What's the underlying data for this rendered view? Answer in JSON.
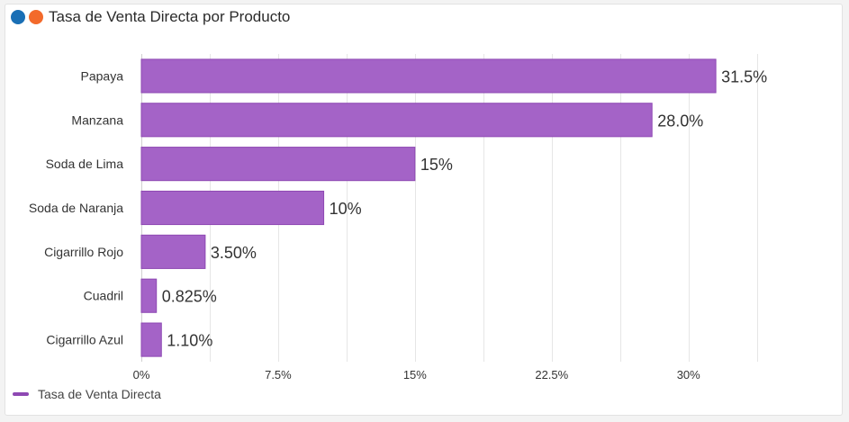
{
  "header": {
    "title": "Tasa de Venta Directa por Producto",
    "dot1_color": "#1a6fb5",
    "dot2_color": "#f36a2b"
  },
  "chart_data": {
    "type": "bar",
    "orientation": "horizontal",
    "title": "Tasa de Venta Directa por Producto",
    "categories": [
      "Papaya",
      "Manzana",
      "Soda de Lima",
      "Soda de Naranja",
      "Cigarrillo Rojo",
      "Cuadril",
      "Cigarrillo Azul"
    ],
    "series": [
      {
        "name": "Tasa de Venta Directa",
        "values": [
          31.5,
          28.0,
          15,
          10,
          3.5,
          0.825,
          1.1
        ],
        "labels": [
          "31.5%",
          "28.0%",
          "15%",
          "10%",
          "3.50%",
          "0.825%",
          "1.10%"
        ]
      }
    ],
    "xlim": [
      0,
      35
    ],
    "xticks": [
      0,
      7.5,
      15,
      22.5,
      30
    ],
    "xtick_labels": [
      "0%",
      "7.5%",
      "15%",
      "22.5%",
      "30%"
    ],
    "grid": true,
    "bar_color": "#a463c7",
    "bar_border": "#8e48b3"
  },
  "legend": {
    "label": "Tasa de Venta Directa",
    "color": "#8e48b3"
  }
}
